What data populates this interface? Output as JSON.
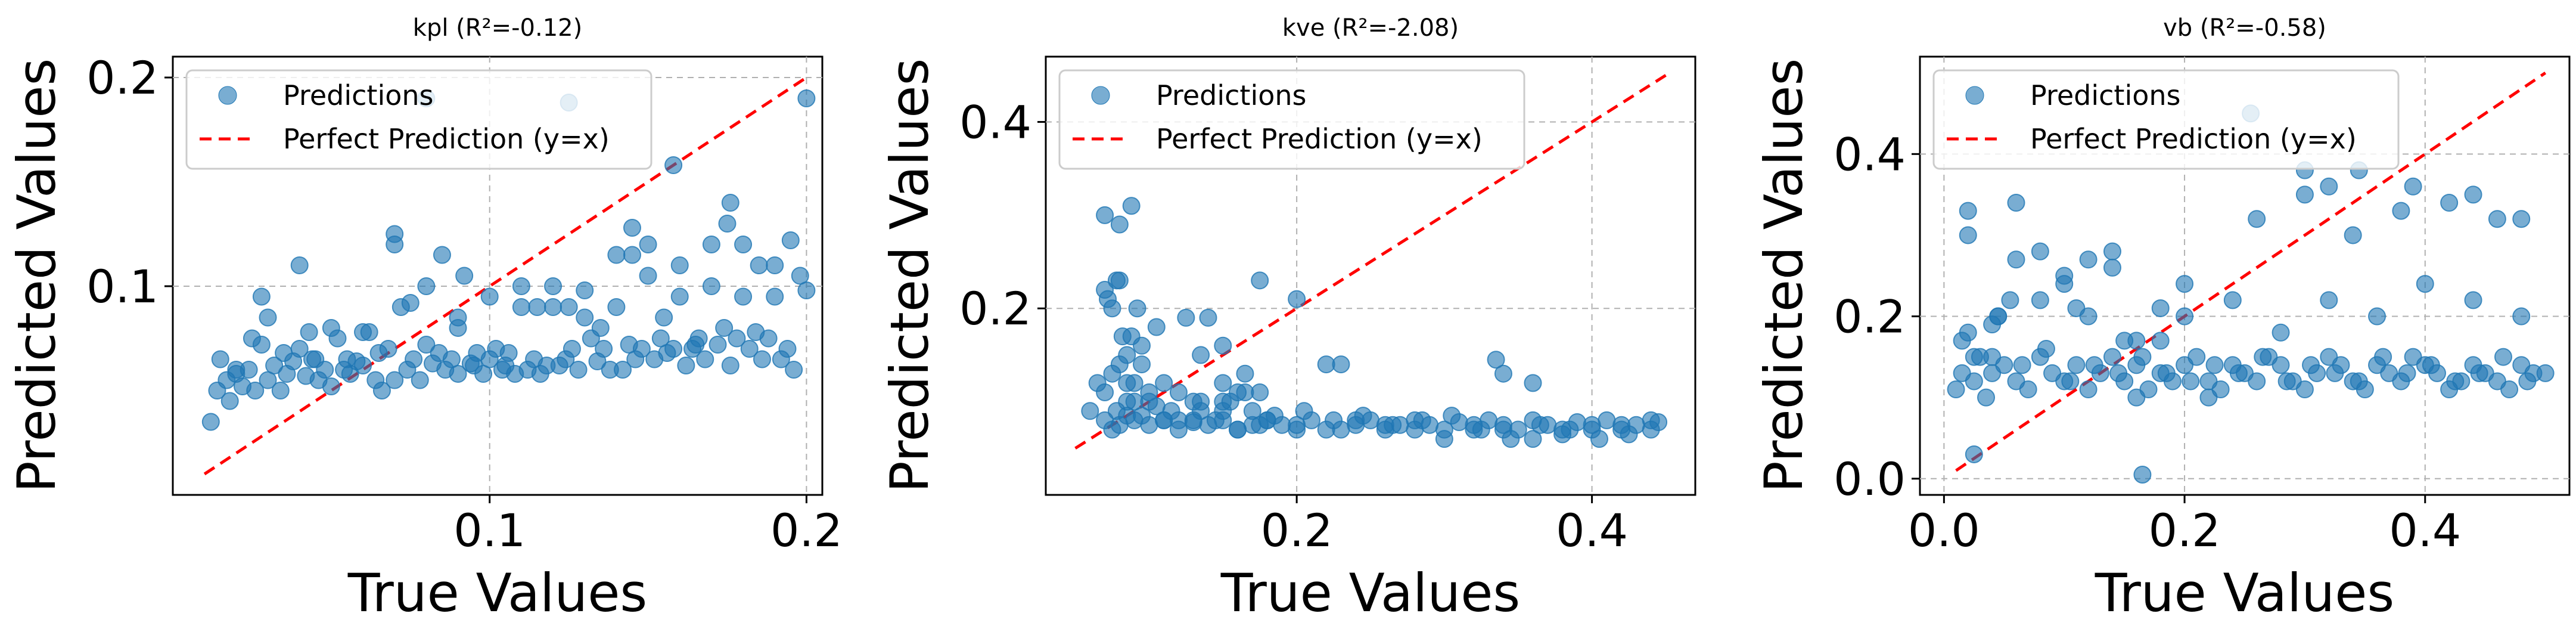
{
  "chart_data": [
    {
      "type": "scatter",
      "title": "kpl (R²=-0.12)",
      "xlabel": "True Values",
      "ylabel": "Predicted Values",
      "xlim": [
        0.0,
        0.205
      ],
      "ylim": [
        0.0,
        0.21
      ],
      "xticks": [
        0.1,
        0.2
      ],
      "xtick_labels": [
        "0.1",
        "0.2"
      ],
      "yticks": [
        0.1,
        0.2
      ],
      "ytick_labels": [
        "0.1",
        "0.2"
      ],
      "grid": true,
      "legend": {
        "position": "top-left",
        "entries": [
          "Predictions",
          "Perfect Prediction (y=x)"
        ]
      },
      "colors": {
        "points": "#1f77b4",
        "line": "#ff0000"
      },
      "line": {
        "name": "Perfect Prediction (y=x)",
        "x": [
          0.01,
          0.2
        ],
        "y": [
          0.01,
          0.2
        ]
      },
      "series": [
        {
          "name": "Predictions",
          "x": [
            0.012,
            0.014,
            0.015,
            0.017,
            0.018,
            0.02,
            0.022,
            0.024,
            0.026,
            0.028,
            0.03,
            0.032,
            0.034,
            0.036,
            0.038,
            0.04,
            0.042,
            0.044,
            0.046,
            0.048,
            0.05,
            0.052,
            0.054,
            0.056,
            0.058,
            0.06,
            0.062,
            0.064,
            0.066,
            0.068,
            0.07,
            0.072,
            0.074,
            0.076,
            0.078,
            0.08,
            0.082,
            0.084,
            0.086,
            0.088,
            0.09,
            0.092,
            0.094,
            0.096,
            0.098,
            0.1,
            0.102,
            0.104,
            0.106,
            0.108,
            0.11,
            0.112,
            0.114,
            0.116,
            0.118,
            0.12,
            0.122,
            0.124,
            0.126,
            0.128,
            0.13,
            0.132,
            0.134,
            0.136,
            0.138,
            0.14,
            0.142,
            0.144,
            0.146,
            0.148,
            0.15,
            0.152,
            0.154,
            0.156,
            0.158,
            0.16,
            0.162,
            0.164,
            0.166,
            0.168,
            0.17,
            0.172,
            0.174,
            0.176,
            0.178,
            0.18,
            0.182,
            0.184,
            0.186,
            0.188,
            0.19,
            0.192,
            0.194,
            0.196,
            0.198,
            0.02,
            0.03,
            0.04,
            0.05,
            0.06,
            0.07,
            0.08,
            0.09,
            0.1,
            0.11,
            0.12,
            0.13,
            0.14,
            0.15,
            0.16,
            0.17,
            0.18,
            0.19,
            0.2,
            0.025,
            0.045,
            0.065,
            0.085,
            0.105,
            0.125,
            0.145,
            0.165,
            0.185,
            0.035,
            0.055,
            0.075,
            0.095,
            0.115,
            0.135,
            0.155,
            0.175,
            0.195,
            0.08,
            0.125,
            0.043,
            0.028,
            0.07,
            0.09,
            0.158,
            0.2,
            0.145,
            0.176
          ],
          "y": [
            0.035,
            0.05,
            0.065,
            0.055,
            0.045,
            0.058,
            0.052,
            0.06,
            0.05,
            0.072,
            0.055,
            0.062,
            0.05,
            0.058,
            0.064,
            0.11,
            0.057,
            0.065,
            0.055,
            0.06,
            0.052,
            0.075,
            0.06,
            0.058,
            0.064,
            0.062,
            0.078,
            0.055,
            0.05,
            0.07,
            0.055,
            0.09,
            0.06,
            0.065,
            0.055,
            0.072,
            0.063,
            0.068,
            0.06,
            0.065,
            0.058,
            0.105,
            0.063,
            0.068,
            0.058,
            0.065,
            0.07,
            0.06,
            0.068,
            0.058,
            0.1,
            0.06,
            0.065,
            0.058,
            0.062,
            0.09,
            0.062,
            0.065,
            0.07,
            0.06,
            0.098,
            0.075,
            0.064,
            0.07,
            0.06,
            0.115,
            0.06,
            0.072,
            0.065,
            0.07,
            0.12,
            0.065,
            0.075,
            0.068,
            0.07,
            0.11,
            0.062,
            0.07,
            0.075,
            0.065,
            0.12,
            0.072,
            0.08,
            0.062,
            0.075,
            0.095,
            0.07,
            0.078,
            0.065,
            0.075,
            0.11,
            0.065,
            0.07,
            0.06,
            0.105,
            0.06,
            0.085,
            0.07,
            0.08,
            0.078,
            0.12,
            0.1,
            0.08,
            0.095,
            0.09,
            0.1,
            0.085,
            0.09,
            0.105,
            0.095,
            0.1,
            0.12,
            0.095,
            0.098,
            0.075,
            0.065,
            0.068,
            0.115,
            0.062,
            0.09,
            0.115,
            0.072,
            0.11,
            0.068,
            0.065,
            0.092,
            0.062,
            0.09,
            0.08,
            0.085,
            0.13,
            0.122,
            0.19,
            0.188,
            0.078,
            0.095,
            0.125,
            0.085,
            0.158,
            0.19,
            0.128,
            0.14
          ]
        }
      ]
    },
    {
      "type": "scatter",
      "title": "kve (R²=-2.08)",
      "xlabel": "True Values",
      "ylabel": "Predicted Values",
      "xlim": [
        0.03,
        0.47
      ],
      "ylim": [
        0.0,
        0.47
      ],
      "xticks": [
        0.2,
        0.4
      ],
      "xtick_labels": [
        "0.2",
        "0.4"
      ],
      "yticks": [
        0.2,
        0.4
      ],
      "ytick_labels": [
        "0.2",
        "0.4"
      ],
      "grid": true,
      "legend": {
        "position": "top-left",
        "entries": [
          "Predictions",
          "Perfect Prediction (y=x)"
        ]
      },
      "colors": {
        "points": "#1f77b4",
        "line": "#ff0000"
      },
      "line": {
        "name": "Perfect Prediction (y=x)",
        "x": [
          0.05,
          0.45
        ],
        "y": [
          0.05,
          0.45
        ]
      },
      "series": [
        {
          "name": "Predictions",
          "x": [
            0.06,
            0.065,
            0.07,
            0.072,
            0.075,
            0.078,
            0.08,
            0.082,
            0.085,
            0.088,
            0.09,
            0.092,
            0.095,
            0.1,
            0.105,
            0.11,
            0.115,
            0.12,
            0.125,
            0.13,
            0.135,
            0.14,
            0.145,
            0.15,
            0.155,
            0.16,
            0.165,
            0.17,
            0.175,
            0.18,
            0.19,
            0.2,
            0.21,
            0.22,
            0.23,
            0.24,
            0.25,
            0.26,
            0.27,
            0.28,
            0.29,
            0.3,
            0.31,
            0.32,
            0.33,
            0.34,
            0.35,
            0.36,
            0.37,
            0.38,
            0.39,
            0.4,
            0.41,
            0.42,
            0.43,
            0.44,
            0.445,
            0.07,
            0.075,
            0.08,
            0.085,
            0.09,
            0.1,
            0.11,
            0.12,
            0.13,
            0.14,
            0.15,
            0.16,
            0.17,
            0.18,
            0.2,
            0.22,
            0.24,
            0.26,
            0.28,
            0.3,
            0.32,
            0.34,
            0.36,
            0.38,
            0.4,
            0.42,
            0.44,
            0.078,
            0.085,
            0.095,
            0.105,
            0.12,
            0.135,
            0.15,
            0.165,
            0.185,
            0.205,
            0.225,
            0.245,
            0.265,
            0.285,
            0.305,
            0.325,
            0.345,
            0.365,
            0.385,
            0.405,
            0.425,
            0.07,
            0.075,
            0.08,
            0.085,
            0.09,
            0.1,
            0.11,
            0.13,
            0.15,
            0.175,
            0.2,
            0.23,
            0.335,
            0.34,
            0.36,
            0.08,
            0.095,
            0.07,
            0.088,
            0.175,
            0.135,
            0.15,
            0.16
          ],
          "y": [
            0.09,
            0.12,
            0.3,
            0.21,
            0.2,
            0.23,
            0.29,
            0.17,
            0.15,
            0.31,
            0.12,
            0.2,
            0.14,
            0.1,
            0.18,
            0.12,
            0.09,
            0.11,
            0.19,
            0.08,
            0.1,
            0.19,
            0.08,
            0.12,
            0.1,
            0.07,
            0.13,
            0.09,
            0.075,
            0.08,
            0.075,
            0.07,
            0.08,
            0.14,
            0.07,
            0.075,
            0.08,
            0.07,
            0.075,
            0.08,
            0.075,
            0.07,
            0.078,
            0.07,
            0.08,
            0.075,
            0.07,
            0.08,
            0.075,
            0.07,
            0.078,
            0.075,
            0.08,
            0.07,
            0.075,
            0.08,
            0.078,
            0.08,
            0.07,
            0.075,
            0.085,
            0.08,
            0.075,
            0.08,
            0.07,
            0.078,
            0.075,
            0.08,
            0.07,
            0.075,
            0.08,
            0.075,
            0.07,
            0.08,
            0.075,
            0.07,
            0.06,
            0.075,
            0.07,
            0.06,
            0.065,
            0.07,
            0.075,
            0.07,
            0.09,
            0.1,
            0.085,
            0.095,
            0.08,
            0.09,
            0.1,
            0.11,
            0.085,
            0.09,
            0.08,
            0.085,
            0.075,
            0.08,
            0.085,
            0.07,
            0.06,
            0.075,
            0.07,
            0.06,
            0.065,
            0.11,
            0.13,
            0.14,
            0.12,
            0.1,
            0.11,
            0.08,
            0.1,
            0.09,
            0.11,
            0.21,
            0.14,
            0.145,
            0.13,
            0.12,
            0.23,
            0.16,
            0.22,
            0.17,
            0.23,
            0.15,
            0.16,
            0.11
          ]
        }
      ]
    },
    {
      "type": "scatter",
      "title": "vb (R²=-0.58)",
      "xlabel": "True Values",
      "ylabel": "Predicted Values",
      "xlim": [
        -0.02,
        0.52
      ],
      "ylim": [
        -0.02,
        0.52
      ],
      "xticks": [
        0.0,
        0.2,
        0.4
      ],
      "xtick_labels": [
        "0.0",
        "0.2",
        "0.4"
      ],
      "yticks": [
        0.0,
        0.2,
        0.4
      ],
      "ytick_labels": [
        "0.0",
        "0.2",
        "0.4"
      ],
      "grid": true,
      "legend": {
        "position": "top-left",
        "entries": [
          "Predictions",
          "Perfect Prediction (y=x)"
        ]
      },
      "colors": {
        "points": "#1f77b4",
        "line": "#ff0000"
      },
      "line": {
        "name": "Perfect Prediction (y=x)",
        "x": [
          0.01,
          0.5
        ],
        "y": [
          0.01,
          0.5
        ]
      },
      "series": [
        {
          "name": "Predictions",
          "x": [
            0.01,
            0.015,
            0.02,
            0.025,
            0.03,
            0.035,
            0.04,
            0.05,
            0.06,
            0.07,
            0.08,
            0.09,
            0.1,
            0.11,
            0.12,
            0.13,
            0.14,
            0.15,
            0.16,
            0.17,
            0.18,
            0.19,
            0.2,
            0.21,
            0.22,
            0.23,
            0.24,
            0.25,
            0.26,
            0.27,
            0.28,
            0.29,
            0.3,
            0.31,
            0.32,
            0.33,
            0.34,
            0.35,
            0.36,
            0.37,
            0.38,
            0.39,
            0.4,
            0.41,
            0.42,
            0.43,
            0.44,
            0.45,
            0.46,
            0.47,
            0.48,
            0.49,
            0.015,
            0.025,
            0.045,
            0.065,
            0.085,
            0.105,
            0.125,
            0.145,
            0.165,
            0.185,
            0.205,
            0.225,
            0.245,
            0.265,
            0.285,
            0.305,
            0.325,
            0.345,
            0.365,
            0.385,
            0.405,
            0.425,
            0.445,
            0.465,
            0.485,
            0.02,
            0.04,
            0.06,
            0.08,
            0.1,
            0.12,
            0.14,
            0.16,
            0.18,
            0.2,
            0.24,
            0.28,
            0.32,
            0.36,
            0.4,
            0.44,
            0.48,
            0.02,
            0.04,
            0.06,
            0.08,
            0.1,
            0.12,
            0.14,
            0.16,
            0.18,
            0.22,
            0.26,
            0.3,
            0.34,
            0.38,
            0.42,
            0.46,
            0.5,
            0.025,
            0.165,
            0.255,
            0.3,
            0.32,
            0.345,
            0.39,
            0.44,
            0.48,
            0.045,
            0.055,
            0.11,
            0.15,
            0.2
          ],
          "y": [
            0.11,
            0.13,
            0.18,
            0.12,
            0.15,
            0.1,
            0.13,
            0.14,
            0.12,
            0.11,
            0.15,
            0.13,
            0.12,
            0.14,
            0.11,
            0.13,
            0.15,
            0.12,
            0.14,
            0.11,
            0.13,
            0.12,
            0.14,
            0.15,
            0.12,
            0.11,
            0.14,
            0.13,
            0.12,
            0.15,
            0.14,
            0.12,
            0.11,
            0.13,
            0.15,
            0.14,
            0.12,
            0.11,
            0.14,
            0.13,
            0.12,
            0.15,
            0.14,
            0.13,
            0.11,
            0.12,
            0.14,
            0.13,
            0.12,
            0.11,
            0.14,
            0.13,
            0.17,
            0.15,
            0.2,
            0.14,
            0.16,
            0.12,
            0.14,
            0.13,
            0.15,
            0.13,
            0.12,
            0.14,
            0.13,
            0.15,
            0.12,
            0.14,
            0.13,
            0.12,
            0.15,
            0.13,
            0.14,
            0.12,
            0.13,
            0.15,
            0.12,
            0.3,
            0.19,
            0.27,
            0.22,
            0.25,
            0.2,
            0.28,
            0.17,
            0.21,
            0.2,
            0.22,
            0.18,
            0.22,
            0.2,
            0.24,
            0.22,
            0.2,
            0.33,
            0.15,
            0.34,
            0.28,
            0.24,
            0.27,
            0.26,
            0.1,
            0.17,
            0.1,
            0.32,
            0.35,
            0.3,
            0.33,
            0.34,
            0.32,
            0.13,
            0.03,
            0.005,
            0.45,
            0.38,
            0.36,
            0.38,
            0.36,
            0.35,
            0.32,
            0.2,
            0.22,
            0.21,
            0.17,
            0.24
          ]
        }
      ]
    }
  ]
}
